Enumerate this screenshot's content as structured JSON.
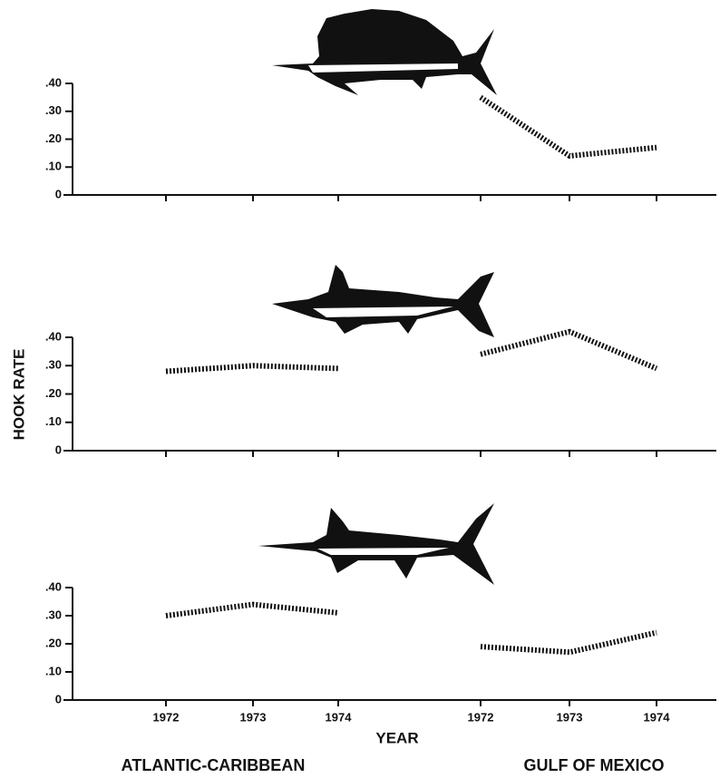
{
  "y_label": "HOOK RATE",
  "x_axis": {
    "label": "YEAR",
    "groups": [
      {
        "name": "ATLANTIC-CARIBBEAN",
        "categories": [
          "1972",
          "1973",
          "1974"
        ]
      },
      {
        "name": "GULF OF MEXICO",
        "categories": [
          "1972",
          "1973",
          "1974"
        ]
      }
    ]
  },
  "chart_data": [
    {
      "type": "line",
      "color": "#111111",
      "ylim": [
        0,
        0.4
      ],
      "yticks": [
        0,
        {
          "value": 0.1,
          "label": ".10"
        },
        {
          "value": 0.2,
          "label": ".20"
        },
        {
          "value": 0.3,
          "label": ".30"
        },
        {
          "value": 0.4,
          "label": ".40"
        }
      ],
      "series": [
        {
          "values": [
            null,
            null,
            null
          ]
        },
        {
          "values": [
            0.35,
            0.14,
            0.17
          ]
        }
      ]
    },
    {
      "type": "line",
      "color": "#111111",
      "ylim": [
        0,
        0.4
      ],
      "yticks": [
        0,
        {
          "value": 0.1,
          "label": ".10"
        },
        {
          "value": 0.2,
          "label": ".20"
        },
        {
          "value": 0.3,
          "label": ".30"
        },
        {
          "value": 0.4,
          "label": ".40"
        }
      ],
      "series": [
        {
          "values": [
            0.28,
            0.3,
            0.29
          ]
        },
        {
          "values": [
            0.34,
            0.42,
            0.29
          ]
        }
      ]
    },
    {
      "type": "line",
      "color": "#111111",
      "ylim": [
        0,
        0.4
      ],
      "yticks": [
        0,
        {
          "value": 0.1,
          "label": ".10"
        },
        {
          "value": 0.2,
          "label": ".20"
        },
        {
          "value": 0.3,
          "label": ".30"
        },
        {
          "value": 0.4,
          "label": ".40"
        }
      ],
      "series": [
        {
          "values": [
            0.3,
            0.34,
            0.31
          ]
        },
        {
          "values": [
            0.19,
            0.17,
            0.24
          ]
        }
      ]
    }
  ]
}
